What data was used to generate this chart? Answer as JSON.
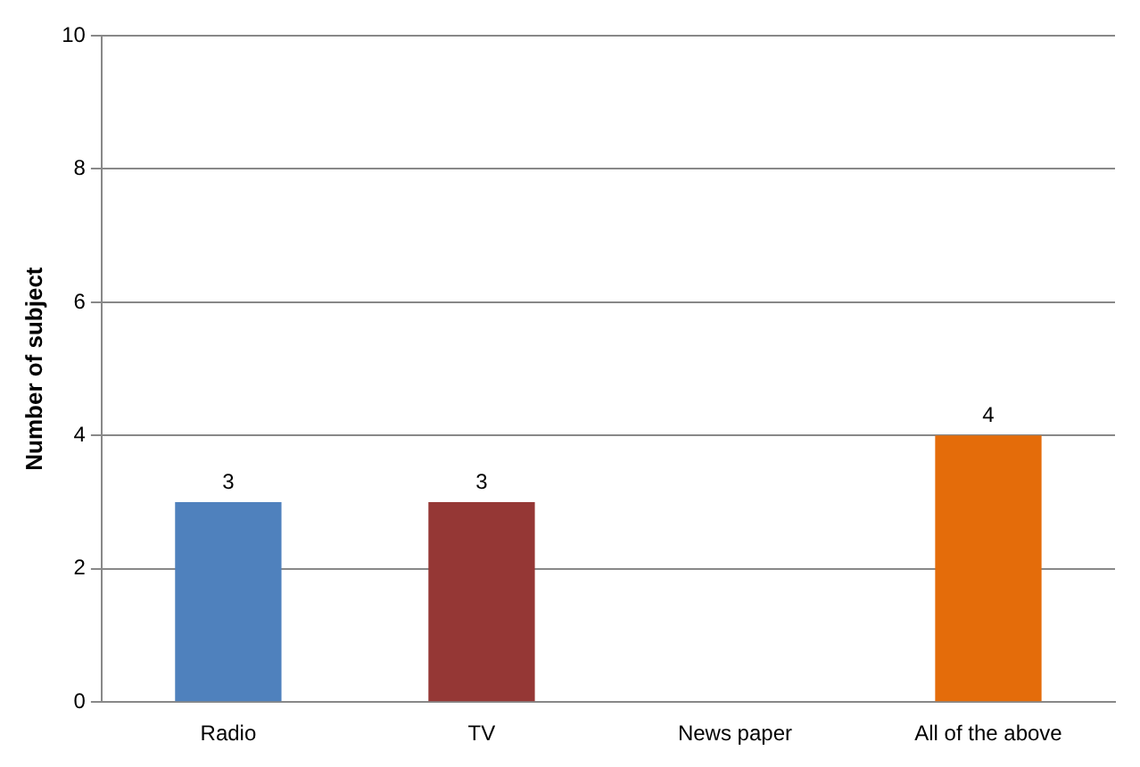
{
  "chart_data": {
    "type": "bar",
    "ylabel": "Number of subject",
    "categories": [
      "Radio",
      "TV",
      "News paper",
      "All of the above"
    ],
    "values": [
      3,
      3,
      0,
      4
    ],
    "colors": [
      "#4f81bd",
      "#953735",
      "#9bbb59",
      "#e46c0a"
    ],
    "value_labels": [
      "3",
      "3",
      null,
      "4"
    ],
    "ylim": [
      0,
      10
    ],
    "yticks": [
      0,
      2,
      4,
      6,
      8,
      10
    ],
    "grid": "y",
    "legend": false
  }
}
